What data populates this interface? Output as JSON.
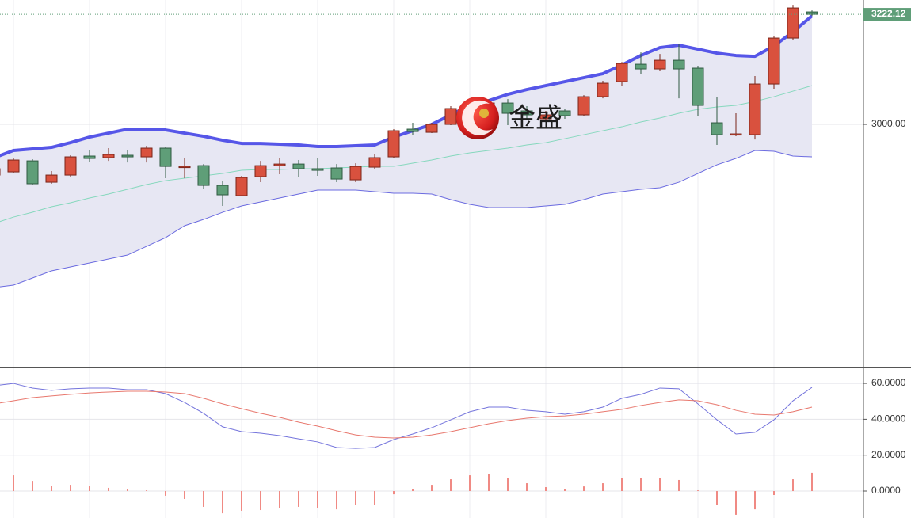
{
  "chart_data": [
    {
      "type": "candlestick",
      "open": [
        2897.7,
        2904.1,
        2926.4,
        2883.3,
        2897.7,
        2936.1,
        2932.9,
        2937.7,
        2934.5,
        2952.1,
        2913.7,
        2916.8,
        2876.9,
        2856.2,
        2894.5,
        2916.8,
        2920.0,
        2910.5,
        2912.1,
        2888.1,
        2913.7,
        2934.5,
        2990.4,
        2984.0,
        3000.0,
        3043.1,
        3011.2,
        3043.1,
        3027.2,
        3011.2,
        3027.2,
        3019.2,
        3055.9,
        3086.3,
        3121.4,
        3111.9,
        3129.4,
        3113.5,
        3003.2,
        2979.2,
        2979.2,
        3081.5,
        3174.2,
        3226.9
      ],
      "high": [
        2913.7,
        2931.3,
        2929.7,
        2905.7,
        2937.7,
        2947.3,
        2952.1,
        2947.3,
        2956.9,
        2955.3,
        2931.3,
        2920.0,
        2886.5,
        2896.1,
        2926.4,
        2931.3,
        2928.1,
        2931.3,
        2920.0,
        2921.6,
        2940.9,
        2990.4,
        3003.2,
        3003.2,
        3036.8,
        3052.7,
        3051.1,
        3051.1,
        3036.8,
        3027.2,
        3032.0,
        3059.1,
        3087.9,
        3126.2,
        3145.4,
        3142.2,
        3163.0,
        3118.3,
        3055.9,
        3022.4,
        3097.5,
        3179.0,
        3241.3,
        3230.1
      ],
      "low": [
        2894.5,
        2902.5,
        2878.6,
        2880.2,
        2894.5,
        2924.8,
        2926.4,
        2923.2,
        2923.2,
        2891.3,
        2891.3,
        2870.6,
        2835.4,
        2854.6,
        2883.3,
        2899.3,
        2894.5,
        2896.1,
        2883.3,
        2883.3,
        2910.5,
        2931.3,
        2979.2,
        2982.4,
        2998.4,
        3019.2,
        3008.0,
        2998.4,
        3011.2,
        3008.0,
        3011.2,
        3017.6,
        3052.7,
        3078.3,
        3102.3,
        3107.1,
        3052.7,
        3017.6,
        2958.5,
        2976.0,
        2969.6,
        3071.9,
        3171.0,
        3218.9
      ],
      "close": [
        2910.5,
        2928.1,
        2880.2,
        2897.7,
        2934.5,
        2931.3,
        2939.3,
        2934.5,
        2952.1,
        2915.2,
        2915.2,
        2876.9,
        2857.8,
        2892.9,
        2916.8,
        2920.0,
        2910.5,
        2907.3,
        2889.7,
        2915.2,
        2932.9,
        2987.2,
        2985.6,
        3000.0,
        3032.0,
        3027.2,
        3043.1,
        3022.4,
        3019.2,
        3019.2,
        3017.6,
        3055.9,
        3083.1,
        3123.0,
        3111.9,
        3129.4,
        3111.9,
        3038.4,
        2979.2,
        2980.8,
        3081.5,
        3174.2,
        3234.9,
        3222.12
      ],
      "up_color": "#d9513e",
      "down_color": "#5f9e78",
      "bands": {
        "upper": [
          2932.9,
          2947.3,
          2950.5,
          2953.7,
          2963.2,
          2974.4,
          2982.4,
          2990.4,
          2990.4,
          2988.8,
          2982.4,
          2976.0,
          2968.0,
          2961.6,
          2961.6,
          2960.1,
          2958.5,
          2955.3,
          2955.3,
          2956.9,
          2958.5,
          2974.4,
          2987.2,
          3000.0,
          3019.2,
          3038.4,
          3047.9,
          3060.7,
          3070.3,
          3078.3,
          3086.3,
          3094.3,
          3102.3,
          3119.9,
          3139.0,
          3155.0,
          3159.8,
          3151.8,
          3143.8,
          3139.0,
          3137.4,
          3158.2,
          3187.0,
          3218.9
        ],
        "middle": [
          2800.3,
          2813.0,
          2822.6,
          2833.8,
          2841.8,
          2851.4,
          2859.4,
          2869.0,
          2878.6,
          2886.5,
          2891.3,
          2896.1,
          2900.9,
          2907.3,
          2908.9,
          2908.9,
          2910.5,
          2910.5,
          2912.1,
          2913.7,
          2915.3,
          2915.3,
          2921.7,
          2928.1,
          2936.1,
          2942.5,
          2947.3,
          2952.1,
          2958.5,
          2963.2,
          2971.2,
          2979.2,
          2987.2,
          2995.2,
          3004.8,
          3012.8,
          3022.4,
          3030.4,
          3035.2,
          3038.4,
          3046.3,
          3055.9,
          3067.1,
          3078.3
        ],
        "lower": [
          2670.8,
          2675.6,
          2690.0,
          2704.4,
          2712.4,
          2720.4,
          2728.3,
          2736.3,
          2753.9,
          2771.5,
          2795.5,
          2808.2,
          2822.6,
          2835.4,
          2843.4,
          2851.4,
          2859.4,
          2867.4,
          2867.4,
          2867.4,
          2864.2,
          2861.0,
          2861.0,
          2859.4,
          2848.2,
          2838.6,
          2832.2,
          2832.2,
          2832.2,
          2835.4,
          2838.6,
          2848.2,
          2859.4,
          2864.2,
          2869.0,
          2872.2,
          2883.3,
          2900.9,
          2918.5,
          2931.3,
          2947.3,
          2945.7,
          2936.1,
          2934.5
        ],
        "upper_color": "#5656e8",
        "middle_color": "#86d8bd",
        "lower_color": "#6b6be0",
        "fill": "#e7e7f3"
      },
      "ylim": [
        2511,
        3251
      ],
      "yticks": [
        {
          "value": 3000,
          "label": "3000.00"
        }
      ],
      "last_price": 3222.12,
      "last_color": "#5f9e78",
      "watermark": "金盛",
      "grid": true
    },
    {
      "type": "line",
      "series": [
        {
          "color": "#7474dc",
          "values": [
            58.7,
            60.0,
            57.4,
            56.1,
            57.0,
            57.4,
            57.4,
            56.5,
            56.5,
            54.3,
            49.4,
            43.3,
            35.8,
            33.1,
            32.2,
            30.9,
            29.1,
            27.4,
            24.3,
            23.8,
            24.3,
            28.7,
            31.8,
            35.3,
            39.7,
            44.2,
            46.8,
            46.8,
            45.0,
            44.2,
            42.8,
            44.2,
            46.8,
            51.7,
            53.9,
            57.4,
            57.0,
            48.6,
            39.7,
            31.8,
            32.7,
            39.7,
            50.3,
            57.8
          ]
        },
        {
          "color": "#e8786e",
          "values": [
            48.6,
            50.3,
            52.1,
            53.0,
            53.9,
            54.7,
            55.2,
            55.6,
            55.6,
            55.2,
            54.3,
            51.7,
            48.6,
            45.9,
            43.3,
            41.1,
            38.4,
            36.2,
            33.6,
            31.3,
            30.0,
            29.6,
            30.0,
            31.3,
            33.1,
            35.3,
            37.5,
            39.3,
            40.6,
            41.5,
            41.9,
            42.8,
            44.2,
            45.5,
            47.7,
            49.4,
            50.8,
            50.3,
            48.1,
            45.0,
            42.8,
            42.4,
            44.2,
            46.8
          ]
        }
      ],
      "bars": {
        "color": "#f08a84",
        "values": [
          9.7,
          8.8,
          5.7,
          3.1,
          3.5,
          3.1,
          1.8,
          1.3,
          0.4,
          -2.6,
          -4.4,
          -8.8,
          -12.4,
          -11.0,
          -10.6,
          -9.7,
          -8.8,
          -9.7,
          -10.2,
          -7.9,
          -7.5,
          -1.8,
          0.9,
          3.5,
          6.6,
          8.8,
          9.3,
          7.5,
          4.4,
          2.2,
          1.3,
          2.6,
          4.4,
          7.1,
          7.5,
          7.5,
          6.2,
          0.4,
          -7.9,
          -13.2,
          -10.2,
          -2.2,
          6.6,
          10.2
        ]
      },
      "ylim": [
        -15,
        69.3
      ],
      "yticks": [
        {
          "value": 60,
          "label": "60.0000"
        },
        {
          "value": 40,
          "label": "40.0000"
        },
        {
          "value": 20,
          "label": "20.0000"
        },
        {
          "value": 0,
          "label": "0.0000"
        }
      ],
      "grid": true
    }
  ]
}
